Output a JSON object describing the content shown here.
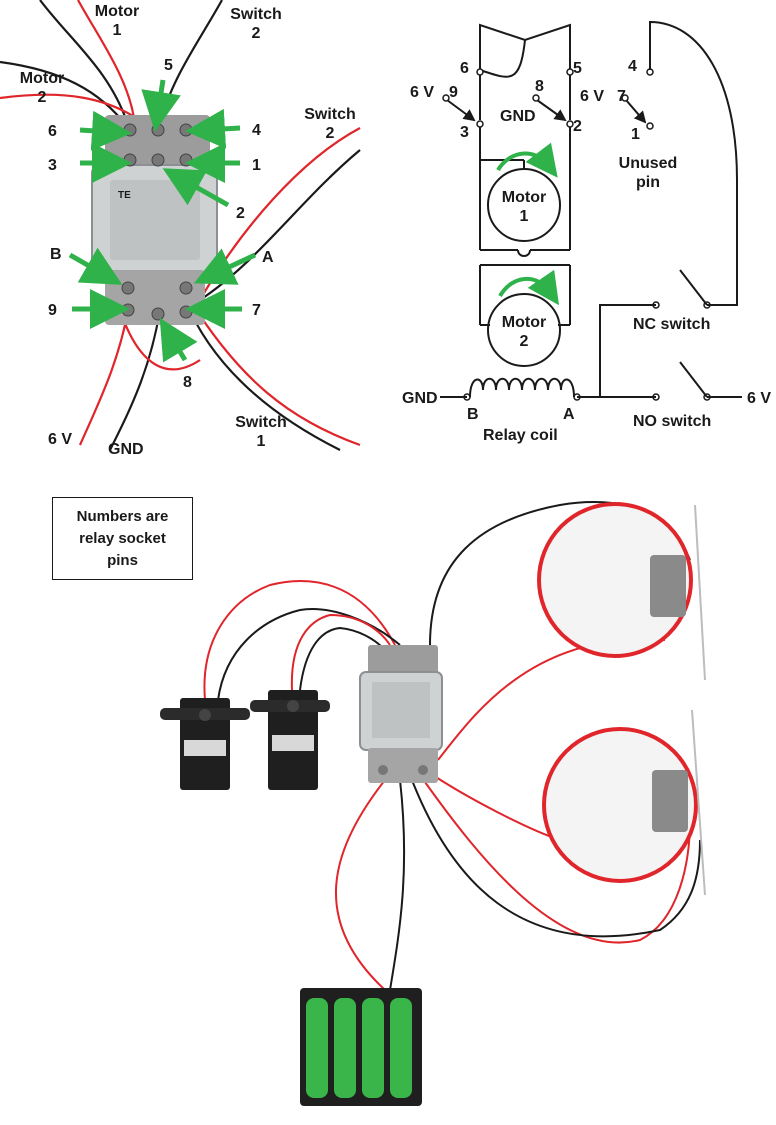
{
  "photo": {
    "labels": {
      "motor1": "Motor\n1",
      "motor2": "Motor\n2",
      "switch2_top": "Switch\n2",
      "switch2_right": "Switch\n2",
      "switch1": "Switch\n1",
      "six_v": "6 V",
      "gnd": "GND",
      "pin1": "1",
      "pin2": "2",
      "pin3": "3",
      "pin4": "4",
      "pin5": "5",
      "pin6": "6",
      "pin7": "7",
      "pin8": "8",
      "pin9": "9",
      "pinA": "A",
      "pinB": "B"
    }
  },
  "schematic": {
    "pins": {
      "p1": "1",
      "p2": "2",
      "p3": "3",
      "p4": "4",
      "p5": "5",
      "p6": "6",
      "p7": "7",
      "p8": "8",
      "p9": "9"
    },
    "six_v_a": "6 V",
    "six_v_b": "6 V",
    "six_v_c": "6 V",
    "gnd_a": "GND",
    "gnd_b": "GND",
    "motor1": "Motor\n1",
    "motor2": "Motor\n2",
    "unused": "Unused\npin",
    "nc_switch": "NC switch",
    "no_switch": "NO switch",
    "coil_b": "B",
    "coil_a": "A",
    "relay_coil": "Relay coil"
  },
  "note": {
    "text": "Numbers are\nrelay socket\npins"
  },
  "colors": {
    "wire_red": "#e0262b",
    "wire_black": "#1a1a1a",
    "arrow_green": "#2fb24a",
    "battery_green": "#39b54a"
  }
}
